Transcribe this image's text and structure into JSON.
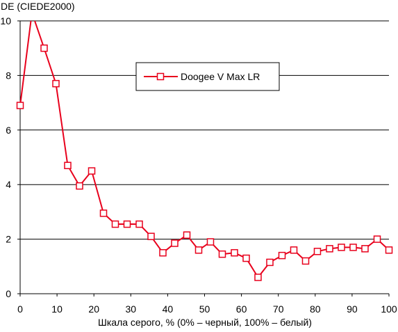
{
  "chart_data": {
    "type": "line",
    "title": "",
    "ylabel": "DE (CIEDE2000)",
    "xlabel": "Шкала серого, % (0% – черный, 100% – белый)",
    "xlim": [
      0,
      100
    ],
    "ylim": [
      0,
      10
    ],
    "x_ticks": [
      "0",
      "10",
      "20",
      "30",
      "40",
      "50",
      "60",
      "70",
      "80",
      "90",
      "100"
    ],
    "y_ticks": [
      "0",
      "2",
      "4",
      "6",
      "8",
      "10"
    ],
    "grid": "horizontal",
    "legend_position": "top-center",
    "series": [
      {
        "name": "Doogee V Max LR",
        "color": "#e8001c",
        "marker": "open-square",
        "x": [
          0,
          3.2,
          6.5,
          9.7,
          12.9,
          16.1,
          19.4,
          22.6,
          25.8,
          29,
          32.3,
          35.5,
          38.7,
          41.9,
          45.2,
          48.4,
          51.6,
          54.8,
          58.1,
          61.3,
          64.5,
          67.7,
          71,
          74.2,
          77.4,
          80.6,
          83.9,
          87.1,
          90.3,
          93.5,
          96.8,
          100
        ],
        "y": [
          6.9,
          10.3,
          9.0,
          7.7,
          4.7,
          3.95,
          4.5,
          2.95,
          2.55,
          2.55,
          2.55,
          2.1,
          1.5,
          1.85,
          2.15,
          1.6,
          1.9,
          1.45,
          1.5,
          1.3,
          0.6,
          1.15,
          1.4,
          1.6,
          1.2,
          1.55,
          1.65,
          1.7,
          1.7,
          1.65,
          2.0,
          1.6
        ]
      }
    ]
  }
}
